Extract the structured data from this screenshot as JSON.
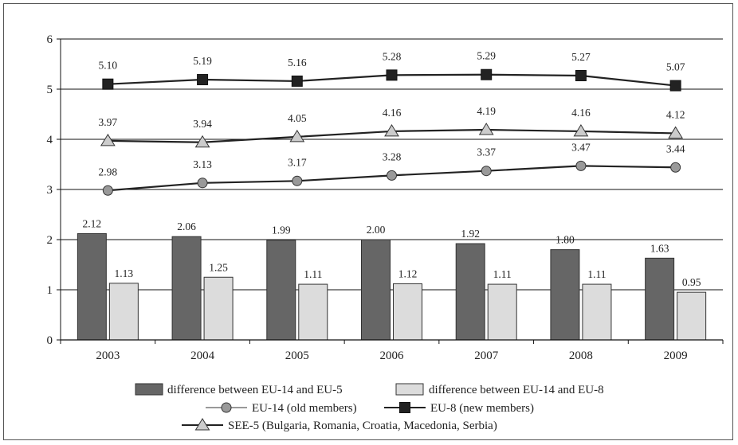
{
  "chart_data": {
    "type": "bar",
    "categories": [
      "2003",
      "2004",
      "2005",
      "2006",
      "2007",
      "2008",
      "2009"
    ],
    "ylim": [
      0,
      6
    ],
    "yticks": [
      "0",
      "1",
      "2",
      "3",
      "4",
      "5",
      "6"
    ],
    "grid": "horizontal",
    "legend_position": "bottom",
    "bar_series": [
      {
        "name": "difference between EU-14 and EU-5",
        "color": "#666666",
        "values": [
          2.12,
          2.06,
          1.99,
          2.0,
          1.92,
          1.8,
          1.63
        ],
        "labels": [
          "2.12",
          "2.06",
          "1.99",
          "2.00",
          "1.92",
          "1.80",
          "1.63"
        ]
      },
      {
        "name": "difference between EU-14 and EU-8",
        "color": "#dcdcdc",
        "values": [
          1.13,
          1.25,
          1.11,
          1.12,
          1.11,
          1.11,
          0.95
        ],
        "labels": [
          "1.13",
          "1.25",
          "1.11",
          "1.12",
          "1.11",
          "1.11",
          "0.95"
        ]
      }
    ],
    "line_series": [
      {
        "name": "EU-14 (old members)",
        "marker": "circle",
        "line_color": "#222222",
        "legend_line_color": "#999999",
        "marker_color": "#999999",
        "values": [
          2.98,
          3.13,
          3.17,
          3.28,
          3.37,
          3.47,
          3.44
        ],
        "labels": [
          "2.98",
          "3.13",
          "3.17",
          "3.28",
          "3.37",
          "3.47",
          "3.44"
        ]
      },
      {
        "name": "EU-8 (new members)",
        "marker": "square",
        "line_color": "#222222",
        "legend_line_color": "#222222",
        "marker_color": "#222222",
        "values": [
          5.1,
          5.19,
          5.16,
          5.28,
          5.29,
          5.27,
          5.07
        ],
        "labels": [
          "5.10",
          "5.19",
          "5.16",
          "5.28",
          "5.29",
          "5.27",
          "5.07"
        ]
      },
      {
        "name": "SEE-5 (Bulgaria, Romania, Croatia, Macedonia, Serbia)",
        "marker": "triangle",
        "line_color": "#222222",
        "legend_line_color": "#222222",
        "marker_color": "#cccccc",
        "values": [
          3.97,
          3.94,
          4.05,
          4.16,
          4.19,
          4.16,
          4.12
        ],
        "labels": [
          "3.97",
          "3.94",
          "4.05",
          "4.16",
          "4.19",
          "4.16",
          "4.12"
        ]
      }
    ]
  }
}
